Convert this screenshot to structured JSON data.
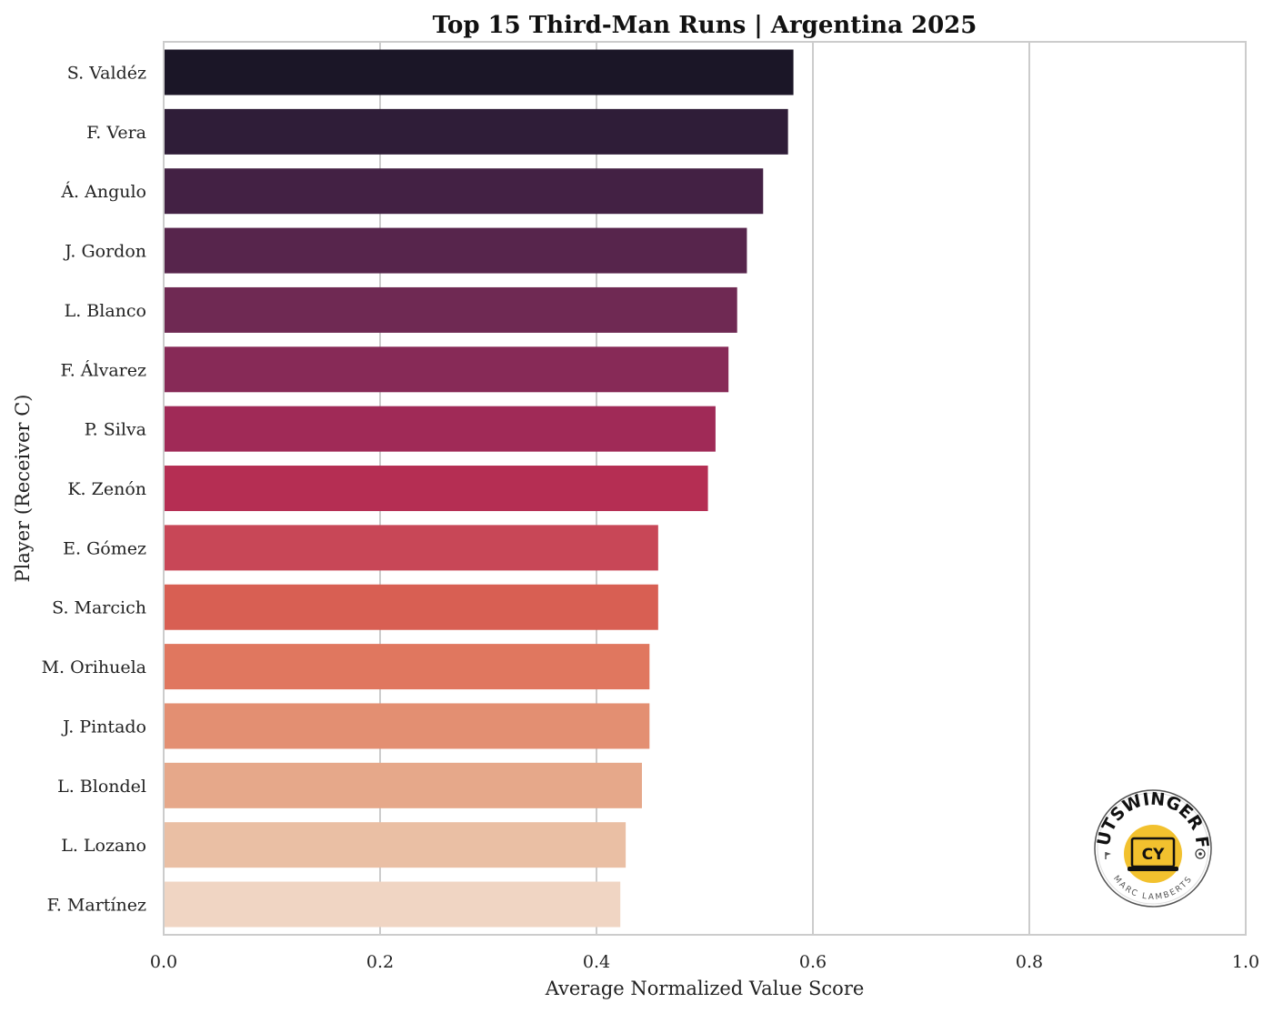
{
  "chart_data": {
    "type": "bar",
    "orientation": "horizontal",
    "title": "Top 15 Third-Man Runs | Argentina 2025",
    "xlabel": "Average Normalized Value Score",
    "ylabel": "Player (Receiver C)",
    "xlim": [
      0.0,
      1.0
    ],
    "xticks": [
      "0.0",
      "0.2",
      "0.4",
      "0.6",
      "0.8",
      "1.0"
    ],
    "grid": true,
    "categories": [
      "S. Valdéz",
      "F. Vera",
      "Á. Angulo",
      "J. Gordon",
      "L. Blanco",
      "F. Álvarez",
      "P. Silva",
      "K. Zenón",
      "E. Gómez",
      "S. Marcich",
      "M. Orihuela",
      "J. Pintado",
      "L. Blondel",
      "L. Lozano",
      "F. Martínez"
    ],
    "values": [
      0.582,
      0.577,
      0.554,
      0.539,
      0.53,
      0.522,
      0.51,
      0.503,
      0.457,
      0.457,
      0.449,
      0.449,
      0.442,
      0.427,
      0.422
    ],
    "colors": [
      "#1b1627",
      "#2f1d38",
      "#432144",
      "#57254c",
      "#6f2953",
      "#872a57",
      "#a02a57",
      "#b52e53",
      "#c84757",
      "#d85f53",
      "#e0775f",
      "#e38f72",
      "#e6a88a",
      "#eabfa4",
      "#f0d5c3"
    ]
  },
  "logo": {
    "name": "OUTSWINGER FC",
    "author": "MARC LAMBERTS",
    "icon": "laptop-logo-icon",
    "accent": "#f2c12e"
  }
}
